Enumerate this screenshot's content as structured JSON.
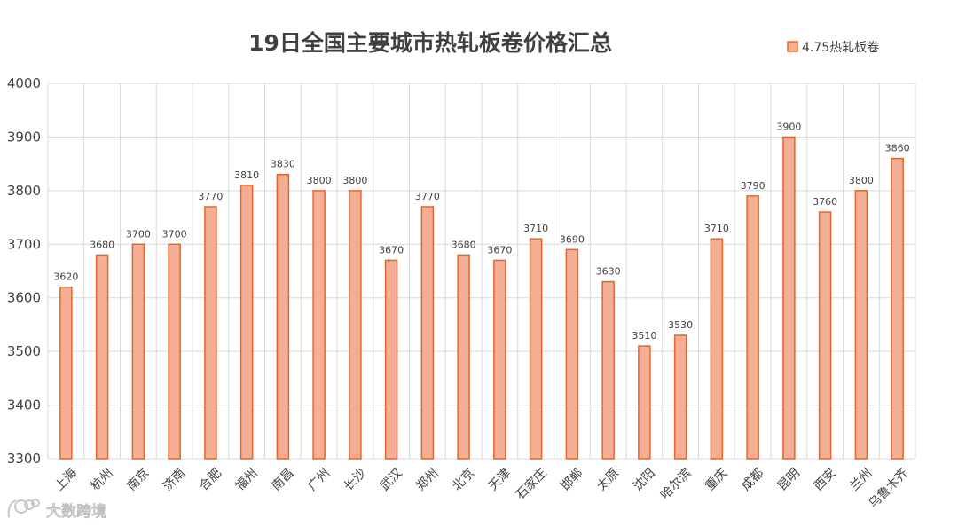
{
  "chart_data": {
    "type": "bar",
    "title": "19日全国主要城市热轧板卷价格汇总",
    "xlabel": "",
    "ylabel": "",
    "categories": [
      "上海",
      "杭州",
      "南京",
      "济南",
      "合肥",
      "福州",
      "南昌",
      "广州",
      "长沙",
      "武汉",
      "郑州",
      "北京",
      "天津",
      "石家庄",
      "邯郸",
      "太原",
      "沈阳",
      "哈尔滨",
      "重庆",
      "成都",
      "昆明",
      "西安",
      "兰州",
      "乌鲁木齐"
    ],
    "series": [
      {
        "name": "4.75热轧板卷",
        "values": [
          3620,
          3680,
          3700,
          3700,
          3770,
          3810,
          3830,
          3800,
          3800,
          3670,
          3770,
          3680,
          3670,
          3710,
          3690,
          3630,
          3510,
          3530,
          3710,
          3790,
          3900,
          3760,
          3800,
          3860
        ]
      }
    ],
    "ylim": [
      3300,
      4000
    ],
    "yticks": [
      3300,
      3400,
      3500,
      3600,
      3700,
      3800,
      3900,
      4000
    ],
    "grid": true,
    "legend": "top-right",
    "colors": {
      "bar_fill": "#f4ae94",
      "bar_stroke": "#e8632b",
      "grid": "#d9d9d9",
      "text": "#404040"
    }
  },
  "watermark": {
    "text": "大数跨境",
    "icon": "camera-logo-icon"
  }
}
